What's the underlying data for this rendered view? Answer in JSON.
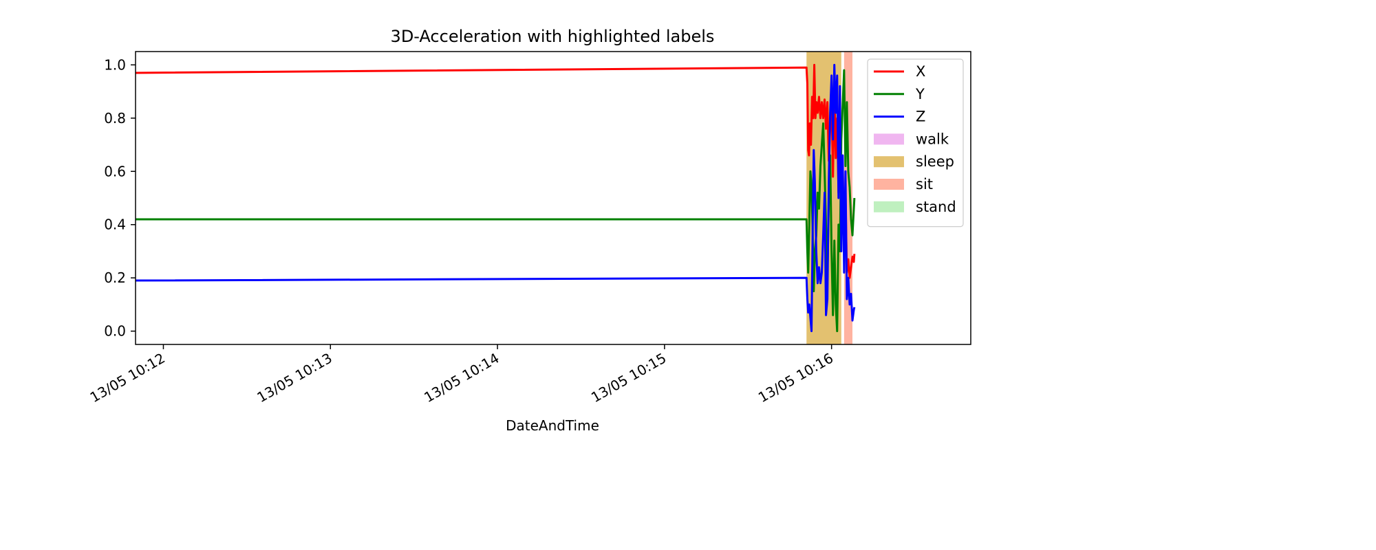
{
  "chart_data": {
    "type": "line",
    "title": "3D-Acceleration with highlighted labels",
    "xlabel": "DateAndTime",
    "ylabel": "",
    "x_axis": {
      "kind": "datetime",
      "min": "2021-05-13T10:11:50",
      "max": "2021-05-13T10:16:50",
      "ticks": [
        {
          "t": "2021-05-13T10:12:00",
          "label": "13/05 10:12"
        },
        {
          "t": "2021-05-13T10:13:00",
          "label": "13/05 10:13"
        },
        {
          "t": "2021-05-13T10:14:00",
          "label": "13/05 10:14"
        },
        {
          "t": "2021-05-13T10:15:00",
          "label": "13/05 10:15"
        },
        {
          "t": "2021-05-13T10:16:00",
          "label": "13/05 10:16"
        }
      ]
    },
    "y_axis": {
      "min": -0.05,
      "max": 1.05,
      "ticks": [
        {
          "v": 0.0,
          "label": "0.0"
        },
        {
          "v": 0.2,
          "label": "0.2"
        },
        {
          "v": 0.4,
          "label": "0.4"
        },
        {
          "v": 0.6,
          "label": "0.6"
        },
        {
          "v": 0.8,
          "label": "0.8"
        },
        {
          "v": 1.0,
          "label": "1.0"
        }
      ]
    },
    "grid": false,
    "legend_position": "top-right",
    "shaded_regions": [
      {
        "label": "sleep",
        "start": "2021-05-13T10:15:51",
        "end": "2021-05-13T10:16:03.5",
        "color": "#e3c170"
      },
      {
        "label": "sit",
        "start": "2021-05-13T10:16:04.5",
        "end": "2021-05-13T10:16:07.5",
        "color": "#ffb3a0"
      }
    ],
    "legend": [
      {
        "label": "X",
        "kind": "line",
        "color": "#ff0000"
      },
      {
        "label": "Y",
        "kind": "line",
        "color": "#008000"
      },
      {
        "label": "Z",
        "kind": "line",
        "color": "#0000ff"
      },
      {
        "label": "walk",
        "kind": "patch",
        "color": "#f0b6f0"
      },
      {
        "label": "sleep",
        "kind": "patch",
        "color": "#e3c170"
      },
      {
        "label": "sit",
        "kind": "patch",
        "color": "#ffb3a0"
      },
      {
        "label": "stand",
        "kind": "patch",
        "color": "#bff0bf"
      }
    ],
    "series": [
      {
        "name": "X",
        "color": "#ff0000",
        "points": [
          [
            "2021-05-13T10:11:50",
            0.97
          ],
          [
            "2021-05-13T10:15:51",
            0.99
          ],
          [
            "2021-05-13T10:15:51.3",
            0.93
          ],
          [
            "2021-05-13T10:15:51.6",
            0.68
          ],
          [
            "2021-05-13T10:15:51.9",
            0.66
          ],
          [
            "2021-05-13T10:15:52.2",
            0.78
          ],
          [
            "2021-05-13T10:15:52.6",
            0.7
          ],
          [
            "2021-05-13T10:15:53",
            0.88
          ],
          [
            "2021-05-13T10:15:53.4",
            0.8
          ],
          [
            "2021-05-13T10:15:53.8",
            1.0
          ],
          [
            "2021-05-13T10:15:54.2",
            0.8
          ],
          [
            "2021-05-13T10:15:54.6",
            0.86
          ],
          [
            "2021-05-13T10:15:55",
            0.82
          ],
          [
            "2021-05-13T10:15:55.5",
            0.88
          ],
          [
            "2021-05-13T10:15:56",
            0.8
          ],
          [
            "2021-05-13T10:15:56.5",
            0.86
          ],
          [
            "2021-05-13T10:15:57",
            0.8
          ],
          [
            "2021-05-13T10:15:57.5",
            0.87
          ],
          [
            "2021-05-13T10:15:58",
            0.76
          ],
          [
            "2021-05-13T10:15:58.5",
            0.86
          ],
          [
            "2021-05-13T10:15:59",
            0.64
          ],
          [
            "2021-05-13T10:15:59.5",
            0.76
          ],
          [
            "2021-05-13T10:16:00",
            0.87
          ],
          [
            "2021-05-13T10:16:00.5",
            0.58
          ],
          [
            "2021-05-13T10:16:01",
            0.92
          ],
          [
            "2021-05-13T10:16:01.5",
            0.65
          ],
          [
            "2021-05-13T10:16:02",
            0.8
          ],
          [
            "2021-05-13T10:16:02.5",
            0.52
          ],
          [
            "2021-05-13T10:16:03",
            0.74
          ],
          [
            "2021-05-13T10:16:03.5",
            0.48
          ],
          [
            "2021-05-13T10:16:04",
            0.62
          ],
          [
            "2021-05-13T10:16:04.5",
            0.3
          ],
          [
            "2021-05-13T10:16:05",
            0.52
          ],
          [
            "2021-05-13T10:16:05.5",
            0.22
          ],
          [
            "2021-05-13T10:16:06",
            0.27
          ],
          [
            "2021-05-13T10:16:06.5",
            0.2
          ],
          [
            "2021-05-13T10:16:07",
            0.24
          ],
          [
            "2021-05-13T10:16:07.5",
            0.28
          ],
          [
            "2021-05-13T10:16:08",
            0.26
          ],
          [
            "2021-05-13T10:16:08.2",
            0.29
          ]
        ]
      },
      {
        "name": "Y",
        "color": "#008000",
        "points": [
          [
            "2021-05-13T10:11:50",
            0.42
          ],
          [
            "2021-05-13T10:15:51",
            0.42
          ],
          [
            "2021-05-13T10:15:51.3",
            0.3
          ],
          [
            "2021-05-13T10:15:51.6",
            0.22
          ],
          [
            "2021-05-13T10:15:52",
            0.4
          ],
          [
            "2021-05-13T10:15:52.4",
            0.6
          ],
          [
            "2021-05-13T10:15:52.8",
            0.55
          ],
          [
            "2021-05-13T10:15:53.2",
            0.38
          ],
          [
            "2021-05-13T10:15:53.6",
            0.15
          ],
          [
            "2021-05-13T10:15:54",
            0.3
          ],
          [
            "2021-05-13T10:15:54.5",
            0.36
          ],
          [
            "2021-05-13T10:15:55",
            0.52
          ],
          [
            "2021-05-13T10:15:55.5",
            0.46
          ],
          [
            "2021-05-13T10:15:56",
            0.62
          ],
          [
            "2021-05-13T10:15:56.5",
            0.7
          ],
          [
            "2021-05-13T10:15:57",
            0.78
          ],
          [
            "2021-05-13T10:15:57.5",
            0.6
          ],
          [
            "2021-05-13T10:15:58",
            0.4
          ],
          [
            "2021-05-13T10:15:58.5",
            0.2
          ],
          [
            "2021-05-13T10:15:59",
            0.48
          ],
          [
            "2021-05-13T10:15:59.5",
            0.66
          ],
          [
            "2021-05-13T10:16:00",
            0.3
          ],
          [
            "2021-05-13T10:16:00.5",
            0.06
          ],
          [
            "2021-05-13T10:16:01",
            0.34
          ],
          [
            "2021-05-13T10:16:01.5",
            0.1
          ],
          [
            "2021-05-13T10:16:02",
            0.0
          ],
          [
            "2021-05-13T10:16:02.5",
            0.4
          ],
          [
            "2021-05-13T10:16:03",
            0.3
          ],
          [
            "2021-05-13T10:16:03.5",
            0.72
          ],
          [
            "2021-05-13T10:16:04",
            0.85
          ],
          [
            "2021-05-13T10:16:04.5",
            0.98
          ],
          [
            "2021-05-13T10:16:05",
            0.62
          ],
          [
            "2021-05-13T10:16:05.5",
            0.86
          ],
          [
            "2021-05-13T10:16:06",
            0.6
          ],
          [
            "2021-05-13T10:16:06.5",
            0.54
          ],
          [
            "2021-05-13T10:16:07",
            0.42
          ],
          [
            "2021-05-13T10:16:07.5",
            0.36
          ],
          [
            "2021-05-13T10:16:08",
            0.46
          ],
          [
            "2021-05-13T10:16:08.2",
            0.5
          ]
        ]
      },
      {
        "name": "Z",
        "color": "#0000ff",
        "points": [
          [
            "2021-05-13T10:11:50",
            0.19
          ],
          [
            "2021-05-13T10:15:51",
            0.2
          ],
          [
            "2021-05-13T10:15:51.3",
            0.12
          ],
          [
            "2021-05-13T10:15:51.6",
            0.07
          ],
          [
            "2021-05-13T10:15:52",
            0.1
          ],
          [
            "2021-05-13T10:15:52.4",
            0.05
          ],
          [
            "2021-05-13T10:15:52.8",
            0.0
          ],
          [
            "2021-05-13T10:15:53.2",
            0.36
          ],
          [
            "2021-05-13T10:15:53.6",
            0.68
          ],
          [
            "2021-05-13T10:15:54",
            0.56
          ],
          [
            "2021-05-13T10:15:54.5",
            0.3
          ],
          [
            "2021-05-13T10:15:55",
            0.18
          ],
          [
            "2021-05-13T10:15:55.5",
            0.24
          ],
          [
            "2021-05-13T10:15:56",
            0.18
          ],
          [
            "2021-05-13T10:15:56.5",
            0.22
          ],
          [
            "2021-05-13T10:15:57",
            0.36
          ],
          [
            "2021-05-13T10:15:57.5",
            0.52
          ],
          [
            "2021-05-13T10:15:58",
            0.06
          ],
          [
            "2021-05-13T10:15:58.5",
            0.12
          ],
          [
            "2021-05-13T10:15:59",
            0.56
          ],
          [
            "2021-05-13T10:15:59.5",
            0.82
          ],
          [
            "2021-05-13T10:16:00",
            0.96
          ],
          [
            "2021-05-13T10:16:00.5",
            0.72
          ],
          [
            "2021-05-13T10:16:01",
            1.0
          ],
          [
            "2021-05-13T10:16:01.5",
            0.82
          ],
          [
            "2021-05-13T10:16:02",
            0.96
          ],
          [
            "2021-05-13T10:16:02.5",
            0.5
          ],
          [
            "2021-05-13T10:16:03",
            0.92
          ],
          [
            "2021-05-13T10:16:03.5",
            0.3
          ],
          [
            "2021-05-13T10:16:04",
            0.66
          ],
          [
            "2021-05-13T10:16:04.5",
            0.22
          ],
          [
            "2021-05-13T10:16:05",
            0.6
          ],
          [
            "2021-05-13T10:16:05.5",
            0.12
          ],
          [
            "2021-05-13T10:16:06",
            0.2
          ],
          [
            "2021-05-13T10:16:06.5",
            0.1
          ],
          [
            "2021-05-13T10:16:07",
            0.14
          ],
          [
            "2021-05-13T10:16:07.5",
            0.04
          ],
          [
            "2021-05-13T10:16:08",
            0.08
          ],
          [
            "2021-05-13T10:16:08.2",
            0.09
          ]
        ]
      }
    ]
  }
}
